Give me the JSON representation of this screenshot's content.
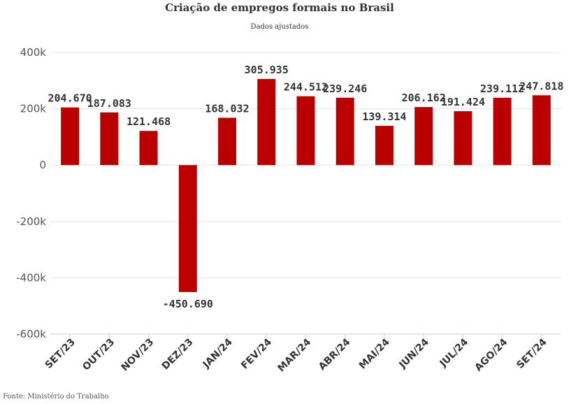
{
  "chart_data": {
    "type": "bar",
    "title": "Criação de empregos formais no Brasil",
    "subtitle": "Dados ajustados",
    "source": "Fonte: Ministério do Trabalho",
    "categories": [
      "SET/23",
      "OUT/23",
      "NOV/23",
      "DEZ/23",
      "JAN/24",
      "FEV/24",
      "MAR/24",
      "ABR/24",
      "MAI/24",
      "JUN/24",
      "JUL/24",
      "AGO/24",
      "SET/24"
    ],
    "values": [
      204670,
      187083,
      121468,
      -450690,
      168032,
      305935,
      244512,
      239246,
      139314,
      206162,
      191424,
      239112,
      247818
    ],
    "data_labels": [
      "204.670",
      "187.083",
      "121.468",
      "-450.690",
      "168.032",
      "305.935",
      "244.512",
      "239.246",
      "139.314",
      "206.162",
      "191.424",
      "239.112",
      "247.818"
    ],
    "ylim": [
      -600000,
      400000
    ],
    "yticks": [
      400000,
      200000,
      0,
      -200000,
      -400000,
      -600000
    ],
    "ytick_labels": [
      "400k",
      "200k",
      "0",
      "-200k",
      "-400k",
      "-600k"
    ],
    "grid": true,
    "legend": "none",
    "bar_color": "#bb0000"
  }
}
